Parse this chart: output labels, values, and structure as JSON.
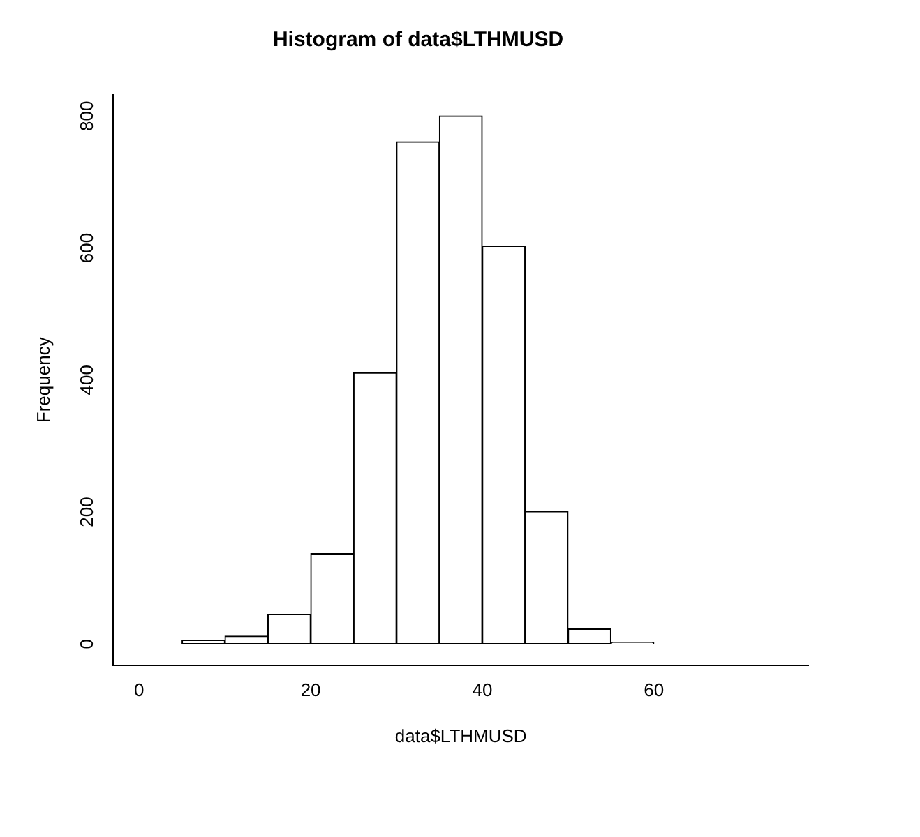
{
  "chart_data": {
    "type": "histogram",
    "title": "Histogram of data$LTHMUSD",
    "xlabel": "data$LTHMUSD",
    "ylabel": "Frequency",
    "bins": [
      0,
      5,
      10,
      15,
      20,
      25,
      30,
      35,
      40,
      45,
      50,
      55,
      60,
      65,
      70,
      75
    ],
    "values": [
      0,
      6,
      12,
      45,
      137,
      411,
      761,
      800,
      603,
      201,
      23,
      2,
      0,
      0,
      0
    ],
    "color": "#ffffff",
    "xlim": [
      -3,
      78
    ],
    "xticks": [
      0,
      20,
      40,
      60
    ],
    "ylim": [
      -32,
      832
    ],
    "yticks": [
      0,
      200,
      400,
      600,
      800
    ],
    "grid": false,
    "legend": false
  }
}
